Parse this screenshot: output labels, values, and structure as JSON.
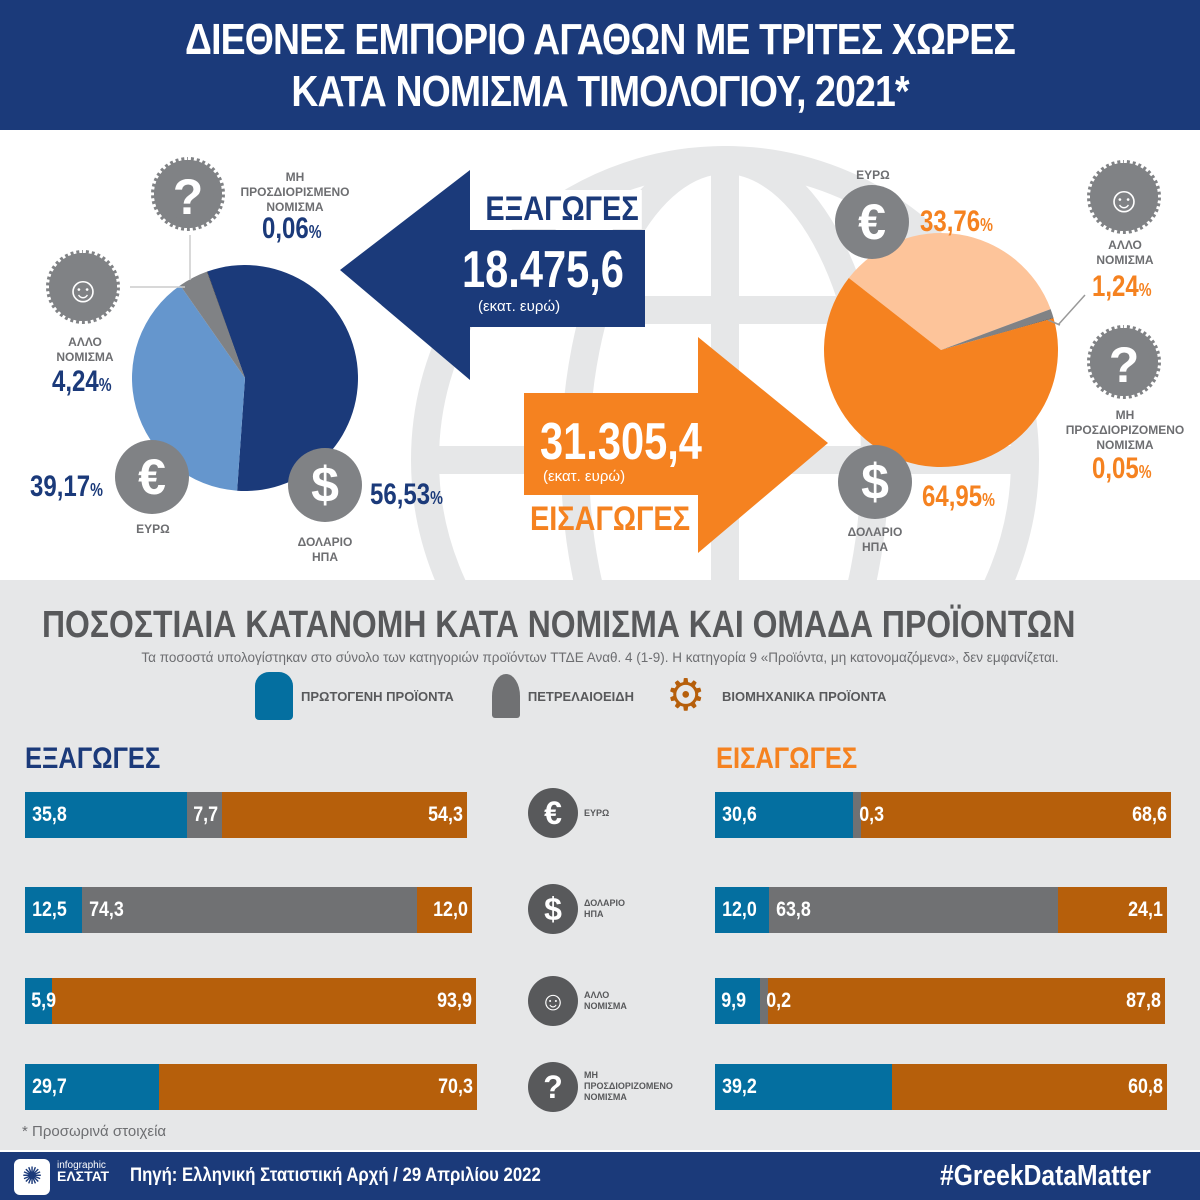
{
  "header": {
    "line1": "ΔΙΕΘΝΕΣ ΕΜΠΟΡΙΟ ΑΓΑΘΩΝ ΜΕ ΤΡΙΤΕΣ ΧΩΡΕΣ",
    "line2": "ΚΑΤΑ ΝΟΜΙΣΜΑ ΤΙΜΟΛΟΓΙΟΥ, 2021*"
  },
  "exports": {
    "title": "ΕΞΑΓΩΓΕΣ",
    "total": "18.475,6",
    "unit": "(εκατ. ευρώ)"
  },
  "imports": {
    "title": "ΕΙΣΑΓΩΓΕΣ",
    "total": "31.305,4",
    "unit": "(εκατ. ευρώ)"
  },
  "labels": {
    "euro": "ΕΥΡΩ",
    "usd_1": "ΔΟΛΑΡΙΟ",
    "usd_2": "ΗΠΑ",
    "other_1": "ΑΛΛΟ",
    "other_2": "ΝΟΜΙΣΜΑ",
    "undet_1": "ΜΗ",
    "undet_2": "ΠΡΟΣΔΙΟΡΙΣΜΕΝΟ",
    "undet_2b": "ΠΡΟΣΔΙΟΡΙΖΟΜΕΝΟ",
    "undet_3": "ΝΟΜΙΣΜΑ",
    "pct": "%"
  },
  "icons": {
    "euro": "€",
    "usd": "$",
    "other": "head-icon",
    "undet": "?"
  },
  "section": {
    "title": "ΠΟΣΟΣΤΙΑΙΑ ΚΑΤΑΝΟΜΗ ΚΑΤΑ ΝΟΜΙΣΜΑ ΚΑΙ ΟΜΑΔΑ ΠΡΟΪΟΝΤΩΝ",
    "note": "Τα ποσοστά υπολογίστηκαν στο σύνολο των κατηγοριών προϊόντων ΤΤΔΕ Αναθ. 4 (1-9). Η κατηγορία 9 «Προϊόντα, μη κατονομαζόμενα», δεν εμφανίζεται.",
    "legend": [
      "ΠΡΩΤΟΓΕΝΗ ΠΡΟΪΟΝΤΑ",
      "ΠΕΤΡΕΛΑΙΟΕΙΔΗ",
      "ΒΙΟΜΗΧΑΝΙΚΑ ΠΡΟΪΟΝΤΑ"
    ]
  },
  "footer": {
    "provisional": "* Προσωρινά στοιχεία",
    "logo_small": "infographic",
    "logo_big": "ΕΛΣΤΑΤ",
    "source": "Πηγή: Ελληνική Στατιστική Αρχή  / 29 Απριλίου 2022",
    "hashtag": "#GreekDataMatter"
  },
  "colors": {
    "navy": "#1b3a7a",
    "lightblue": "#6596cd",
    "grey": "#808285",
    "black": "#231f20",
    "orange": "#f58220",
    "peach": "#fdc49a",
    "primary": "#046fa0",
    "petroleum": "#707173",
    "industrial": "#b65f0b"
  },
  "chart_data": [
    {
      "type": "pie",
      "title": "ΕΞΑΓΩΓΕΣ",
      "categories": [
        "ΔΟΛΑΡΙΟ ΗΠΑ",
        "ΕΥΡΩ",
        "ΑΛΛΟ ΝΟΜΙΣΜΑ",
        "ΜΗ ΠΡΟΣΔΙΟΡΙΣΜΕΝΟ ΝΟΜΙΣΜΑ"
      ],
      "values": [
        56.53,
        39.17,
        4.24,
        0.06
      ],
      "labels": [
        "56,53",
        "39,17",
        "4,24",
        "0,06"
      ]
    },
    {
      "type": "pie",
      "title": "ΕΙΣΑΓΩΓΕΣ",
      "categories": [
        "ΕΥΡΩ",
        "ΑΛΛΟ ΝΟΜΙΣΜΑ",
        "ΜΗ ΠΡΟΣΔΙΟΡΙΖΟΜΕΝΟ ΝΟΜΙΣΜΑ",
        "ΔΟΛΑΡΙΟ ΗΠΑ"
      ],
      "values": [
        33.76,
        1.24,
        0.05,
        64.95
      ],
      "labels": [
        "33,76",
        "1,24",
        "0,05",
        "64,95"
      ]
    },
    {
      "type": "bar",
      "stacked": true,
      "orientation": "horizontal",
      "title": "ΕΞΑΓΩΓΕΣ",
      "categories": [
        "ΕΥΡΩ",
        "ΔΟΛΑΡΙΟ ΗΠΑ",
        "ΑΛΛΟ ΝΟΜΙΣΜΑ",
        "ΜΗ ΠΡΟΣΔΙΟΡΙΖΟΜΕΝΟ ΝΟΜΙΣΜΑ"
      ],
      "series": [
        {
          "name": "ΠΡΩΤΟΓΕΝΗ ΠΡΟΪΟΝΤΑ",
          "values": [
            35.8,
            12.5,
            5.9,
            29.7
          ],
          "labels": [
            "35,8",
            "12,5",
            "5,9",
            "29,7"
          ]
        },
        {
          "name": "ΠΕΤΡΕΛΑΙΟΕΙΔΗ",
          "values": [
            7.7,
            74.3,
            0,
            0
          ],
          "labels": [
            "7,7",
            "74,3",
            "",
            ""
          ]
        },
        {
          "name": "ΒΙΟΜΗΧΑΝΙΚΑ ΠΡΟΪΟΝΤΑ",
          "values": [
            54.3,
            12.0,
            93.9,
            70.3
          ],
          "labels": [
            "54,3",
            "12,0",
            "93,9",
            "70,3"
          ]
        }
      ]
    },
    {
      "type": "bar",
      "stacked": true,
      "orientation": "horizontal",
      "title": "ΕΙΣΑΓΩΓΕΣ",
      "categories": [
        "ΕΥΡΩ",
        "ΔΟΛΑΡΙΟ ΗΠΑ",
        "ΑΛΛΟ ΝΟΜΙΣΜΑ",
        "ΜΗ ΠΡΟΣΔΙΟΡΙΖΟΜΕΝΟ ΝΟΜΙΣΜΑ"
      ],
      "series": [
        {
          "name": "ΠΡΩΤΟΓΕΝΗ ΠΡΟΪΟΝΤΑ",
          "values": [
            30.6,
            12.0,
            9.9,
            39.2
          ],
          "labels": [
            "30,6",
            "12,0",
            "9,9",
            "39,2"
          ]
        },
        {
          "name": "ΠΕΤΡΕΛΑΙΟΕΙΔΗ",
          "values": [
            0.3,
            63.8,
            0.2,
            0
          ],
          "labels": [
            "0,3",
            "63,8",
            "0,2",
            ""
          ]
        },
        {
          "name": "ΒΙΟΜΗΧΑΝΙΚΑ ΠΡΟΪΟΝΤΑ",
          "values": [
            68.6,
            24.1,
            87.8,
            60.8
          ],
          "labels": [
            "68,6",
            "24,1",
            "87,8",
            "60,8"
          ]
        }
      ]
    }
  ]
}
